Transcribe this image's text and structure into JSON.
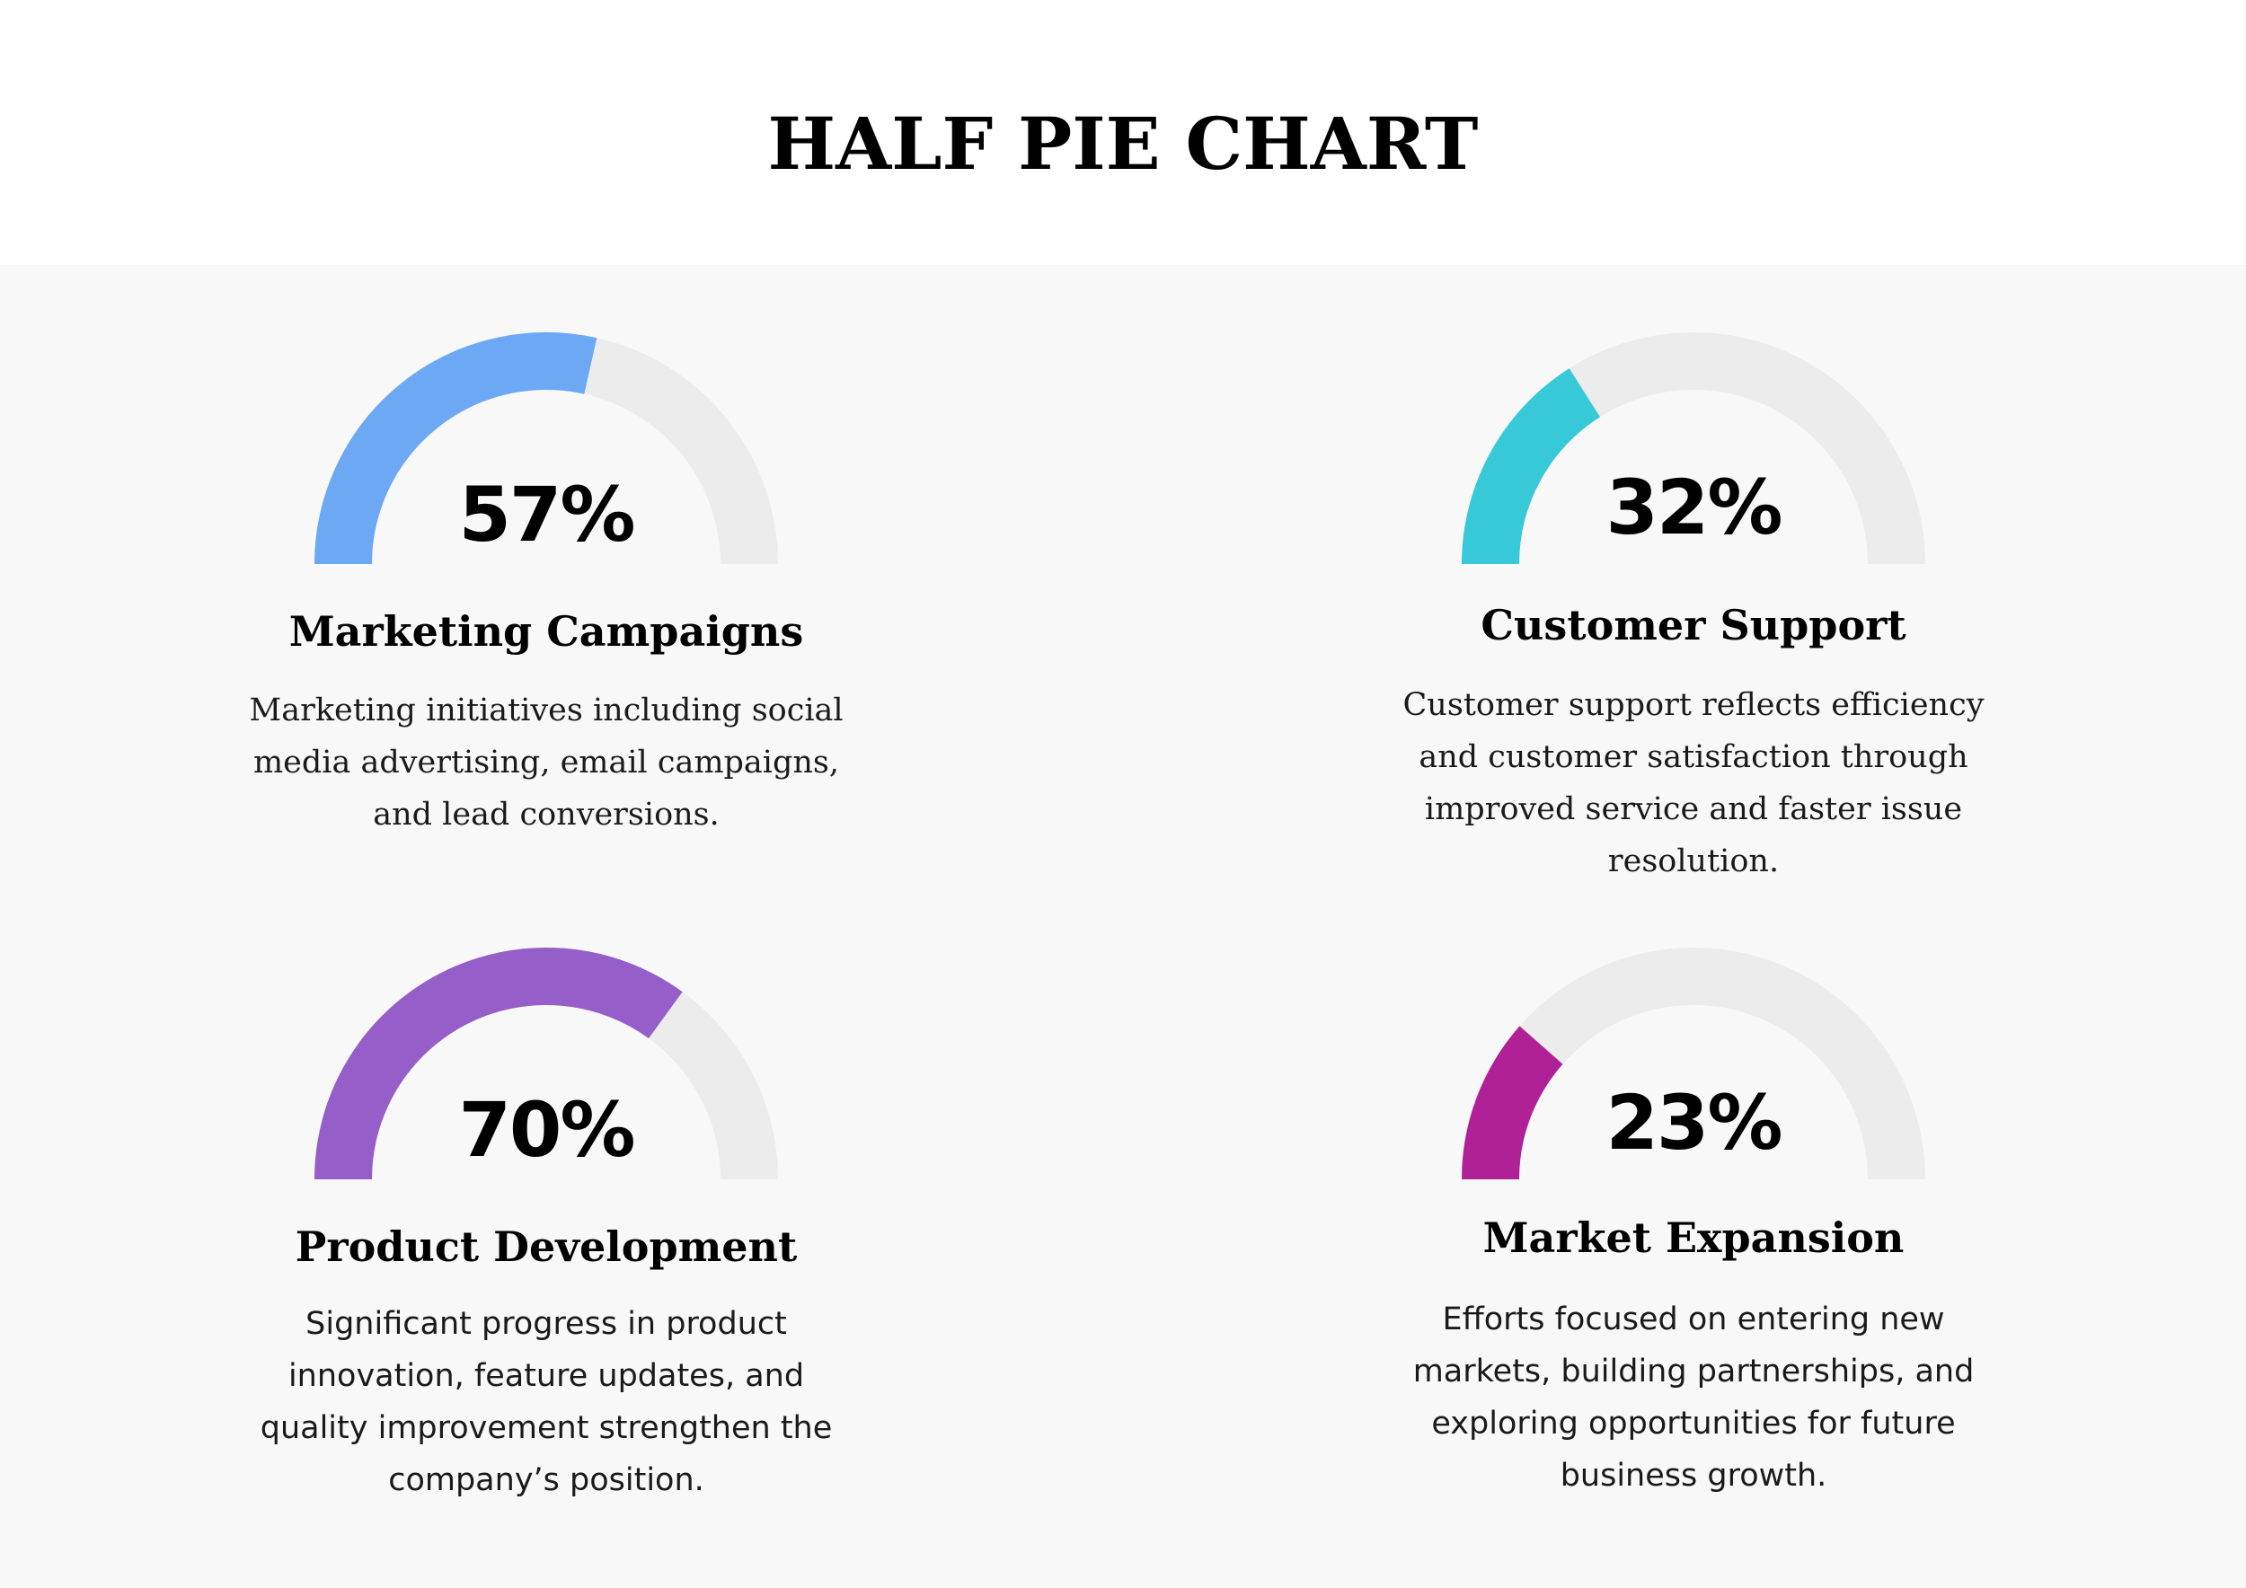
{
  "title": "HALF PIE CHART",
  "chart_data": [
    {
      "type": "pie",
      "subtype": "half-donut-gauge",
      "name": "Marketing Campaigns",
      "value": 57,
      "max": 100,
      "label": "57%",
      "color": "#6da8f5",
      "track_color": "#ececec",
      "description": "Marketing initiatives including social media advertising, email campaigns, and lead conversions."
    },
    {
      "type": "pie",
      "subtype": "half-donut-gauge",
      "name": "Customer Support",
      "value": 32,
      "max": 100,
      "label": "32%",
      "color": "#38c9d8",
      "track_color": "#ececec",
      "description": "Customer support reflects efficiency and customer satisfaction through improved service and faster issue resolution."
    },
    {
      "type": "pie",
      "subtype": "half-donut-gauge",
      "name": "Product Development",
      "value": 70,
      "max": 100,
      "label": "70%",
      "color": "#955ec9",
      "track_color": "#ececec",
      "description": "Significant progress in product innovation, feature updates, and quality improvement strengthen the company’s position."
    },
    {
      "type": "pie",
      "subtype": "half-donut-gauge",
      "name": "Market Expansion",
      "value": 23,
      "max": 100,
      "label": "23%",
      "color": "#b02096",
      "track_color": "#ececec",
      "description": "Efforts focused on entering new markets, building partnerships, and exploring opportunities for future business growth."
    }
  ]
}
